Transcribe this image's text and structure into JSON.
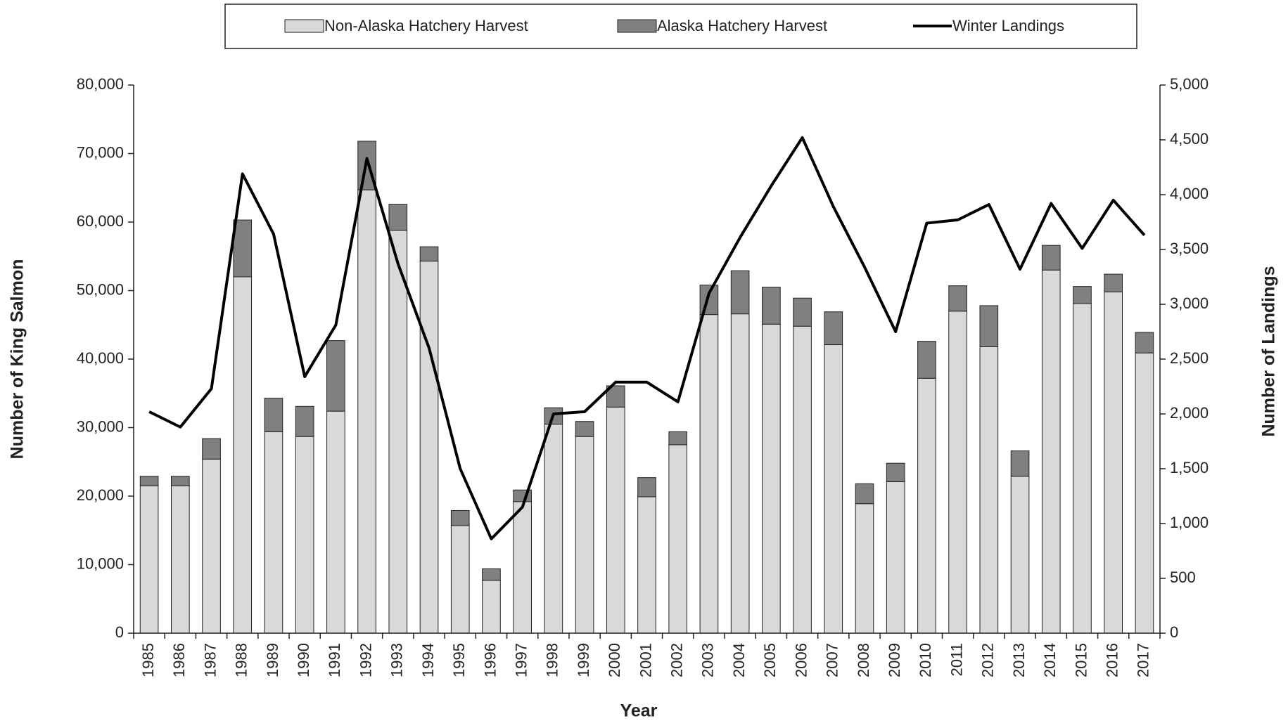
{
  "chart_data": {
    "type": "bar",
    "stacked": true,
    "x_label": "Year",
    "y_label": "Number of King Salmon",
    "y2_label": "Number of Landings",
    "categories": [
      "1985",
      "1986",
      "1987",
      "1988",
      "1989",
      "1990",
      "1991",
      "1992",
      "1993",
      "1994",
      "1995",
      "1996",
      "1997",
      "1998",
      "1999",
      "2000",
      "2001",
      "2002",
      "2003",
      "2004",
      "2005",
      "2006",
      "2007",
      "2008",
      "2009",
      "2010",
      "2011",
      "2012",
      "2013",
      "2014",
      "2015",
      "2016",
      "2017"
    ],
    "series": [
      {
        "name": "Non-Alaska Hatchery Harvest",
        "type": "bar",
        "color": "#d9d9d9",
        "values": [
          21500,
          21500,
          25400,
          52000,
          29400,
          28700,
          32400,
          64700,
          58800,
          54300,
          15700,
          7700,
          19200,
          30500,
          28700,
          33000,
          19900,
          27500,
          46500,
          46600,
          45100,
          44800,
          42100,
          18900,
          22100,
          37200,
          47000,
          41800,
          22900,
          53000,
          48100,
          49800,
          40900
        ]
      },
      {
        "name": "Alaska Hatchery Harvest",
        "type": "bar",
        "color": "#808080",
        "values": [
          1400,
          1400,
          3000,
          8300,
          4900,
          4400,
          10300,
          7100,
          3800,
          2100,
          2200,
          1700,
          1700,
          2400,
          2200,
          3100,
          2800,
          1900,
          4300,
          6300,
          5400,
          4100,
          4800,
          2900,
          2700,
          5400,
          3700,
          6000,
          3700,
          3600,
          2500,
          2600,
          3000
        ]
      },
      {
        "name": "Winter Landings",
        "type": "line",
        "color": "#000000",
        "axis": "y2",
        "values": [
          2020,
          1880,
          2230,
          4190,
          3640,
          2340,
          2810,
          4330,
          3370,
          2600,
          1500,
          860,
          1150,
          2000,
          2020,
          2290,
          2290,
          2110,
          3100,
          3610,
          4080,
          4520,
          3890,
          3340,
          2750,
          3740,
          3770,
          3910,
          3320,
          3920,
          3510,
          3950,
          3630
        ]
      }
    ],
    "ylim": [
      0,
      80000
    ],
    "yticks": [
      0,
      {
        "value": 10000,
        "label": "10,000"
      },
      {
        "value": 20000,
        "label": "20,000"
      },
      {
        "value": 30000,
        "label": "30,000"
      },
      {
        "value": 40000,
        "label": "40,000"
      },
      {
        "value": 50000,
        "label": "50,000"
      },
      {
        "value": 60000,
        "label": "60,000"
      },
      {
        "value": 70000,
        "label": "70,000"
      },
      {
        "value": 80000,
        "label": "80,000"
      }
    ],
    "y2lim": [
      0,
      5000
    ],
    "y2ticks": [
      0,
      500,
      {
        "value": 1000,
        "label": "1,000"
      },
      {
        "value": 1500,
        "label": "1,500"
      },
      {
        "value": 2000,
        "label": "2,000"
      },
      {
        "value": 2500,
        "label": "2,500"
      },
      {
        "value": 3000,
        "label": "3,000"
      },
      {
        "value": 3500,
        "label": "3,500"
      },
      {
        "value": 4000,
        "label": "4,000"
      },
      {
        "value": 4500,
        "label": "4,500"
      },
      {
        "value": 5000,
        "label": "5,000"
      }
    ],
    "legend": "top"
  }
}
